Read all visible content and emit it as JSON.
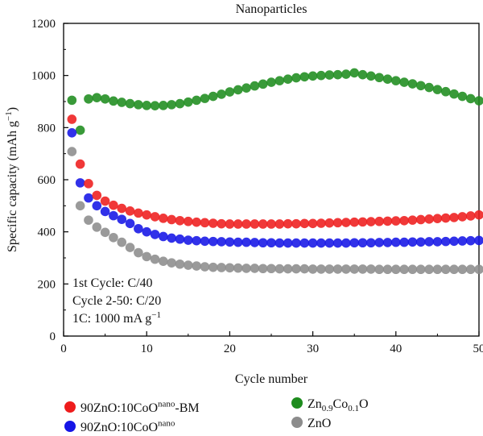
{
  "chart_data": {
    "type": "scatter",
    "title": "Nanoparticles",
    "xlabel": "Cycle number",
    "ylabel": "Specific capacity (mAh g",
    "ylabel_sup": "−1",
    "ylabel_close": ")",
    "xlim": [
      0,
      50
    ],
    "ylim": [
      0,
      1200
    ],
    "xticks": [
      0,
      10,
      20,
      30,
      40,
      50
    ],
    "yticks": [
      0,
      200,
      400,
      600,
      800,
      1000,
      1200
    ],
    "grid": false,
    "legend_position": "bottom",
    "annotations": [
      "1st Cycle: C/40",
      "Cycle 2-50: C/20",
      "1C: 1000 mA g"
    ],
    "annotation_sup": "−1",
    "series": [
      {
        "name": "90ZnO:10CoO",
        "name_sup": "nano",
        "name_suffix": "-BM",
        "color": "#ee1c1c",
        "x": [
          1,
          2,
          3,
          4,
          5,
          6,
          7,
          8,
          9,
          10,
          11,
          12,
          13,
          14,
          15,
          16,
          17,
          18,
          19,
          20,
          21,
          22,
          23,
          24,
          25,
          26,
          27,
          28,
          29,
          30,
          31,
          32,
          33,
          34,
          35,
          36,
          37,
          38,
          39,
          40,
          41,
          42,
          43,
          44,
          45,
          46,
          47,
          48,
          49,
          50
        ],
        "y": [
          832,
          660,
          585,
          540,
          518,
          502,
          490,
          480,
          472,
          465,
          458,
          452,
          447,
          443,
          440,
          437,
          435,
          433,
          431,
          430,
          430,
          430,
          430,
          430,
          430,
          430,
          431,
          431,
          432,
          432,
          433,
          434,
          435,
          436,
          437,
          438,
          439,
          440,
          441,
          442,
          443,
          445,
          447,
          449,
          451,
          453,
          455,
          458,
          461,
          465
        ]
      },
      {
        "name": "90ZnO:10CoO",
        "name_sup": "nano",
        "name_suffix": "",
        "color": "#1515e6",
        "x": [
          1,
          2,
          3,
          4,
          5,
          6,
          7,
          8,
          9,
          10,
          11,
          12,
          13,
          14,
          15,
          16,
          17,
          18,
          19,
          20,
          21,
          22,
          23,
          24,
          25,
          26,
          27,
          28,
          29,
          30,
          31,
          32,
          33,
          34,
          35,
          36,
          37,
          38,
          39,
          40,
          41,
          42,
          43,
          44,
          45,
          46,
          47,
          48,
          49,
          50
        ],
        "y": [
          780,
          588,
          530,
          500,
          478,
          462,
          448,
          432,
          412,
          400,
          390,
          382,
          376,
          372,
          368,
          366,
          364,
          363,
          362,
          361,
          360,
          360,
          359,
          358,
          358,
          357,
          357,
          357,
          357,
          357,
          357,
          357,
          357,
          357,
          358,
          358,
          358,
          359,
          359,
          360,
          360,
          361,
          361,
          362,
          362,
          363,
          364,
          365,
          366,
          367
        ]
      },
      {
        "name": "Zn",
        "name_sub1": "0.9",
        "name_mid": "Co",
        "name_sub2": "0.1",
        "name_end": "O",
        "color": "#1e8c1e",
        "x": [
          1,
          2,
          3,
          4,
          5,
          6,
          7,
          8,
          9,
          10,
          11,
          12,
          13,
          14,
          15,
          16,
          17,
          18,
          19,
          20,
          21,
          22,
          23,
          24,
          25,
          26,
          27,
          28,
          29,
          30,
          31,
          32,
          33,
          34,
          35,
          36,
          37,
          38,
          39,
          40,
          41,
          42,
          43,
          44,
          45,
          46,
          47,
          48,
          49,
          50
        ],
        "y": [
          905,
          790,
          910,
          915,
          910,
          902,
          897,
          892,
          888,
          885,
          884,
          885,
          888,
          892,
          898,
          905,
          912,
          920,
          928,
          937,
          945,
          952,
          960,
          967,
          974,
          980,
          986,
          991,
          995,
          998,
          1000,
          1002,
          1003,
          1005,
          1010,
          1003,
          998,
          992,
          986,
          980,
          974,
          968,
          961,
          954,
          946,
          938,
          929,
          920,
          911,
          903
        ]
      },
      {
        "name": "ZnO",
        "color": "#8c8c8c",
        "x": [
          1,
          2,
          3,
          4,
          5,
          6,
          7,
          8,
          9,
          10,
          11,
          12,
          13,
          14,
          15,
          16,
          17,
          18,
          19,
          20,
          21,
          22,
          23,
          24,
          25,
          26,
          27,
          28,
          29,
          30,
          31,
          32,
          33,
          34,
          35,
          36,
          37,
          38,
          39,
          40,
          41,
          42,
          43,
          44,
          45,
          46,
          47,
          48,
          49,
          50
        ],
        "y": [
          708,
          500,
          445,
          418,
          398,
          378,
          360,
          340,
          320,
          305,
          295,
          287,
          281,
          276,
          272,
          269,
          266,
          264,
          263,
          262,
          261,
          260,
          260,
          259,
          259,
          258,
          258,
          258,
          258,
          257,
          257,
          257,
          257,
          257,
          257,
          257,
          257,
          256,
          256,
          256,
          256,
          256,
          256,
          256,
          256,
          256,
          256,
          256,
          256,
          256
        ]
      }
    ]
  }
}
